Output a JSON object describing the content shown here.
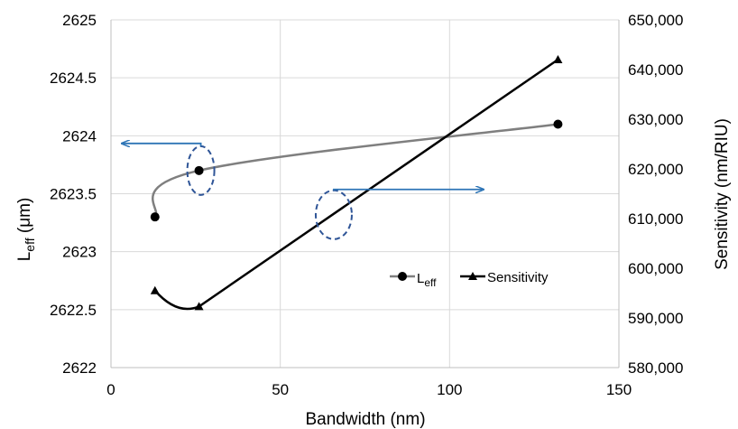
{
  "chart_data": {
    "type": "line",
    "xlabel": "Bandwidth  (nm)",
    "ylabel_main": "L",
    "ylabel_sub": "eff",
    "ylabel_unit": "  (μm)",
    "y2label": "Sensitivity  (nm/RIU)",
    "xlim": [
      0,
      150
    ],
    "ylim": [
      2622,
      2625
    ],
    "y2lim": [
      580000,
      650000
    ],
    "x_ticks": [
      "0",
      "50",
      "100",
      "150"
    ],
    "y_ticks": [
      "2622",
      "2622.5",
      "2623",
      "2623.5",
      "2624",
      "2624.5",
      "2625"
    ],
    "y2_ticks": [
      "580,000",
      "590,000",
      "600,000",
      "610,000",
      "620,000",
      "630,000",
      "640,000",
      "650,000"
    ],
    "grid": true,
    "legend_position": "lower-right-inside",
    "series": [
      {
        "name": "L",
        "name_sub": "eff",
        "axis": "left",
        "color": "#000000",
        "line_color": "#7f7f7f",
        "marker": "circle",
        "x": [
          13,
          26,
          132
        ],
        "y": [
          2623.3,
          2623.7,
          2624.1
        ]
      },
      {
        "name": "Sensitivity",
        "axis": "right",
        "color": "#000000",
        "line_color": "#000000",
        "marker": "triangle",
        "x": [
          13,
          26,
          132
        ],
        "y": [
          595500,
          592300,
          642000
        ]
      }
    ],
    "annotations": [
      {
        "type": "ellipse-arrow",
        "points_to": "left",
        "color": "#2e75b6",
        "marks_series": "L"
      },
      {
        "type": "ellipse-arrow",
        "points_to": "right",
        "color": "#2e75b6",
        "marks_series": "Sensitivity"
      }
    ]
  }
}
